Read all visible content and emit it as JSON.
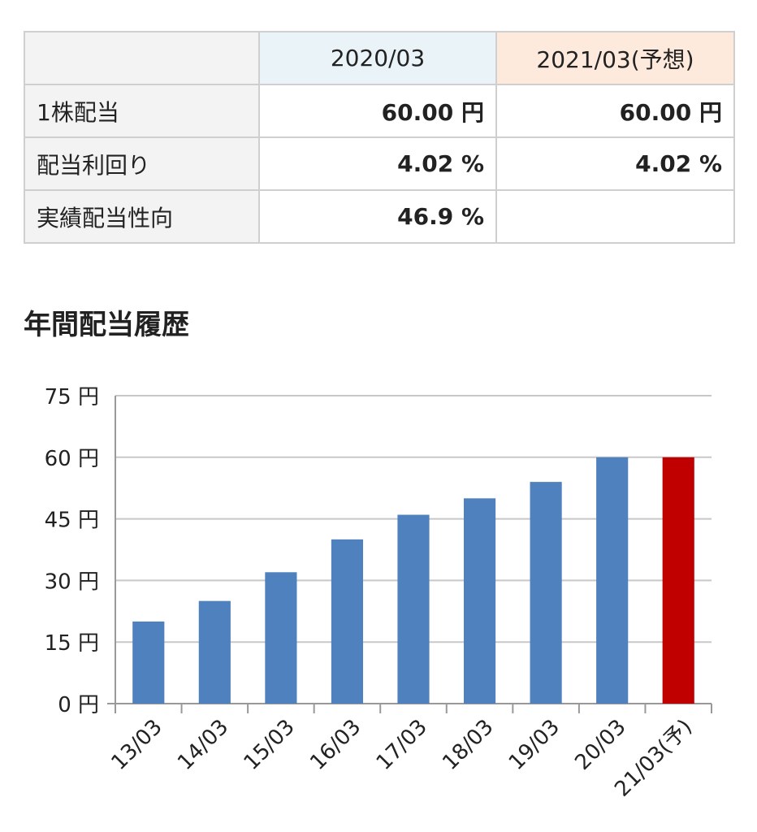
{
  "summary_table": {
    "headers": [
      "",
      "2020/03",
      "2021/03(予想)"
    ],
    "rows": [
      {
        "label": "1株配当",
        "v2020": "60.00 円",
        "v2021": "60.00 円"
      },
      {
        "label": "配当利回り",
        "v2020": "4.02 %",
        "v2021": "4.02 %"
      },
      {
        "label": "実績配当性向",
        "v2020": "46.9 %",
        "v2021": ""
      }
    ]
  },
  "section_title": "年間配当履歴",
  "chart_data": {
    "type": "bar",
    "title": "",
    "xlabel": "",
    "ylabel": "",
    "categories": [
      "13/03",
      "14/03",
      "15/03",
      "16/03",
      "17/03",
      "18/03",
      "19/03",
      "20/03",
      "21/03(予)"
    ],
    "values": [
      20,
      25,
      32,
      40,
      46,
      50,
      54,
      60,
      60
    ],
    "forecast": [
      false,
      false,
      false,
      false,
      false,
      false,
      false,
      false,
      true
    ],
    "ylim": [
      0,
      75
    ],
    "yticks": [
      0,
      15,
      30,
      45,
      60,
      75
    ],
    "ytick_labels": [
      "0 円",
      "15 円",
      "30 円",
      "45 円",
      "60 円",
      "75 円"
    ],
    "grid": true,
    "colors": {
      "actual": "#4e81bd",
      "forecast": "#c00000",
      "grid": "#c8c8c8",
      "axis": "#999999"
    }
  }
}
